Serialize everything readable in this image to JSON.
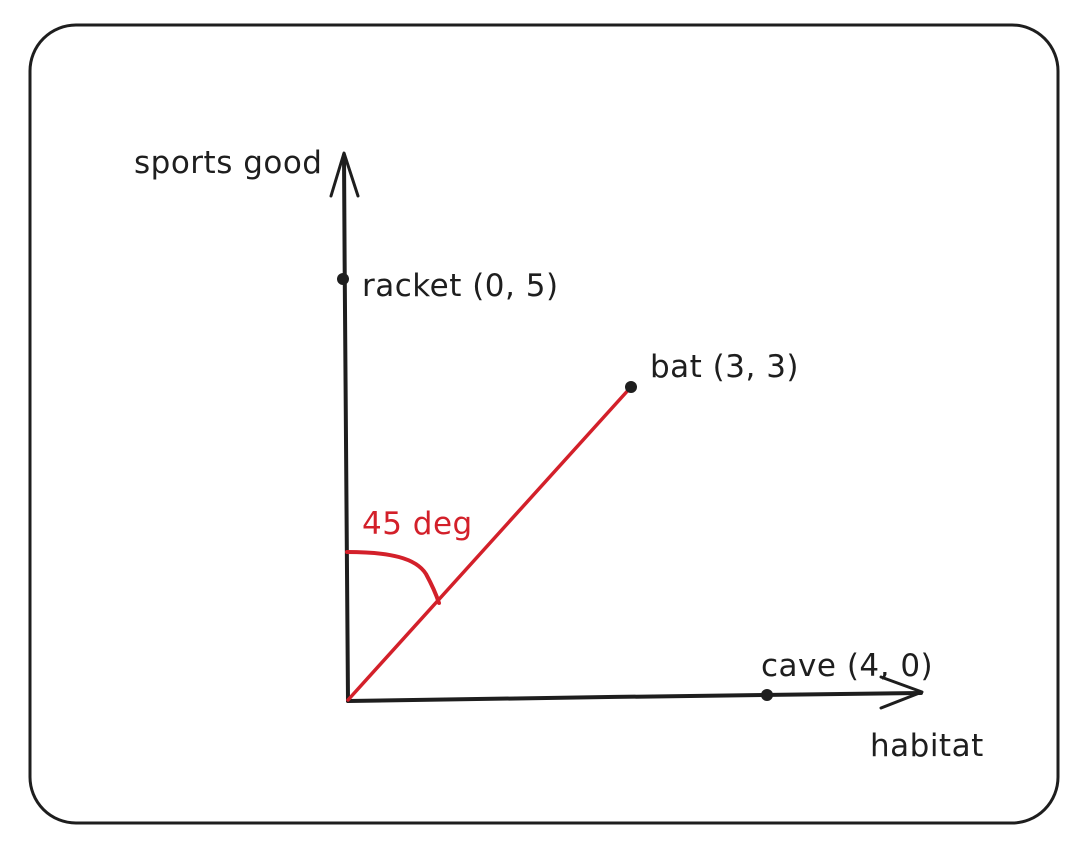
{
  "axes": {
    "x_label": "habitat",
    "y_label": "sports good"
  },
  "points": [
    {
      "label": "racket (0, 5)",
      "x": 0,
      "y": 5
    },
    {
      "label": "bat (3, 3)",
      "x": 3,
      "y": 3
    },
    {
      "label": "cave (4, 0)",
      "x": 4,
      "y": 0
    }
  ],
  "angle": {
    "label": "45 deg",
    "degrees": 45
  },
  "colors": {
    "ink": "#1e1e1e",
    "accent": "#d3202a",
    "background": "#ffffff"
  }
}
